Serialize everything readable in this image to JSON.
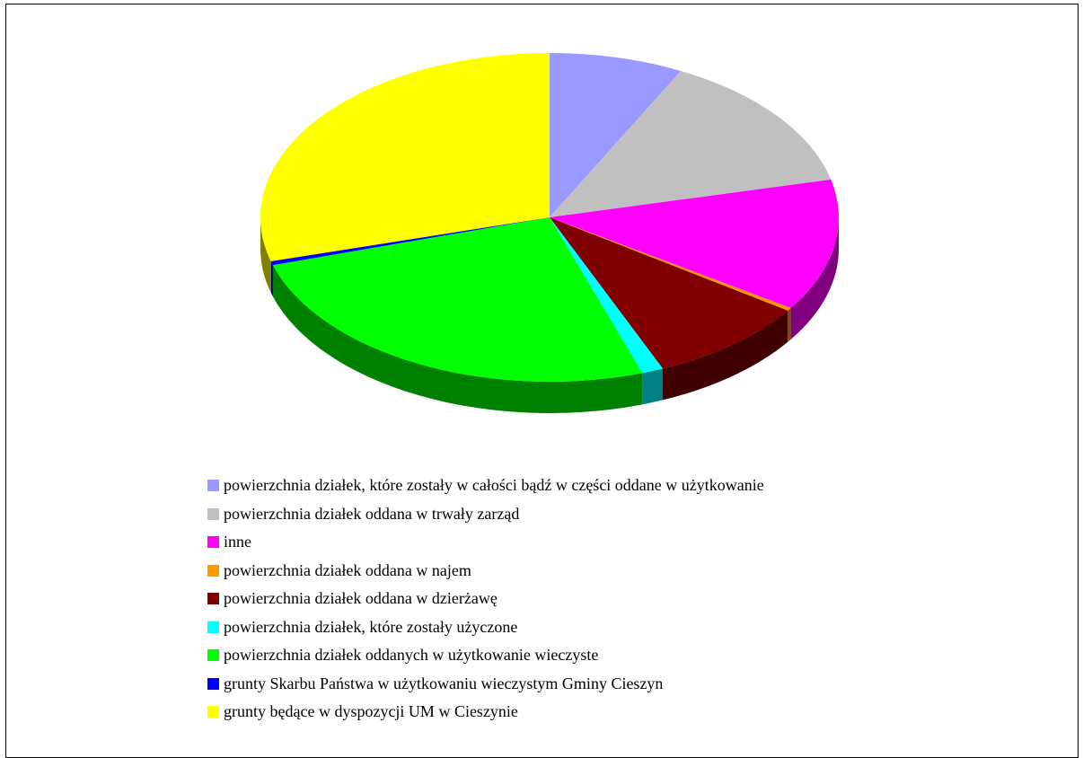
{
  "chart_data": {
    "type": "pie",
    "style": "3d",
    "legend_position": "bottom",
    "slices": [
      {
        "label": "powierzchnia działek, które zostały w całości bądź w części oddane w użytkowanie",
        "value": 7.5,
        "color": "#9999FF"
      },
      {
        "label": "powierzchnia działek oddana  w trwały zarząd",
        "value": 13.8,
        "color": "#C0C0C0"
      },
      {
        "label": "inne",
        "value": 13.0,
        "color": "#FF00FF"
      },
      {
        "label": "powierzchnia działek oddana w najem",
        "value": 0.3,
        "color": "#FF9900"
      },
      {
        "label": "powierzchnia działek oddana w dzierżawę",
        "value": 9.0,
        "color": "#800000"
      },
      {
        "label": "powierzchnia działek, które zostały użyczone",
        "value": 1.2,
        "color": "#00FFFF"
      },
      {
        "label": "powierzchnia działek oddanych w użytkowanie wieczyste",
        "value": 25.5,
        "color": "#00FF00"
      },
      {
        "label": "grunty Skarbu Państwa w użytkowaniu wieczystym Gminy Cieszyn",
        "value": 0.4,
        "color": "#0000FF"
      },
      {
        "label": "grunty będące w dyspozycji UM w Cieszynie",
        "value": 29.3,
        "color": "#FFFF00"
      }
    ]
  }
}
